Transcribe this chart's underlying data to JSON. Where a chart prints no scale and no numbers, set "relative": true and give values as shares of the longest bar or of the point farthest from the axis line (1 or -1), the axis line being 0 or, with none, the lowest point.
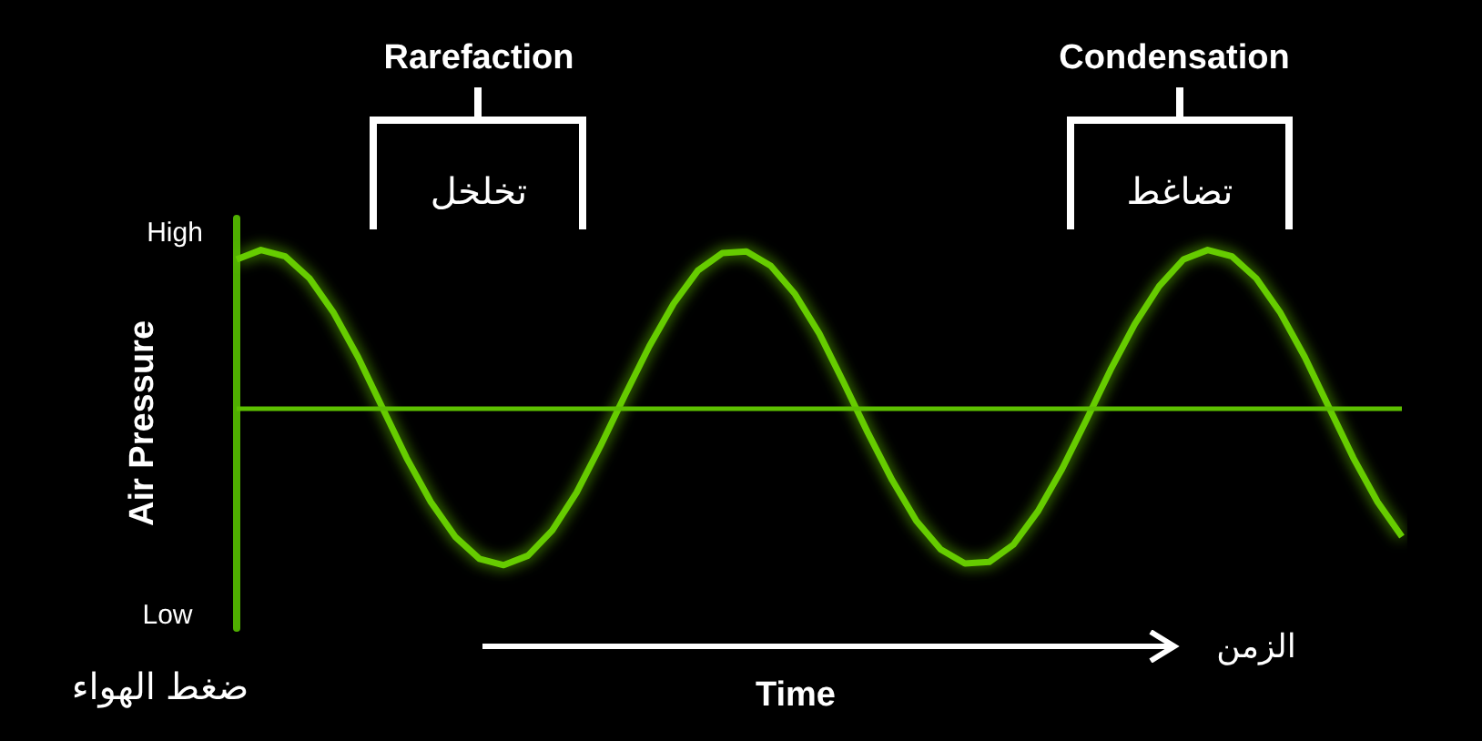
{
  "chart_data": {
    "type": "line",
    "relative": true,
    "xlabel": "Time",
    "ylabel": "Air Pressure",
    "color": "#66cc00",
    "marker": "none",
    "grid": false,
    "ref_lines": [
      {
        "axis": "y",
        "value": 0,
        "color": "#5cbf00"
      }
    ],
    "categories": [
      null,
      null,
      null,
      null,
      null,
      null,
      null,
      null,
      null,
      null,
      null,
      null,
      null,
      null,
      null,
      null,
      null,
      null,
      null,
      null,
      null,
      null,
      null,
      null,
      null,
      null,
      null,
      null,
      null,
      null,
      null,
      null,
      null,
      null,
      null,
      null,
      null,
      null,
      null,
      null,
      null,
      null,
      null,
      null,
      null,
      null,
      null,
      null,
      null
    ],
    "values": [
      0.94,
      1,
      0.96,
      0.82,
      0.6,
      0.32,
      0,
      -0.32,
      -0.6,
      -0.82,
      -0.96,
      -1,
      -0.94,
      -0.78,
      -0.54,
      -0.24,
      0.08,
      0.39,
      0.66,
      0.87,
      0.98,
      0.99,
      0.9,
      0.72,
      0.47,
      0.16,
      -0.16,
      -0.46,
      -0.72,
      -0.9,
      -0.99,
      -0.98,
      -0.87,
      -0.66,
      -0.39,
      -0.08,
      0.24,
      0.53,
      0.77,
      0.94,
      1,
      0.96,
      0.82,
      0.6,
      0.32,
      0,
      -0.32,
      -0.6,
      -0.82
    ],
    "annotations": [
      "Rarefaction",
      "تخلخل",
      "Condensation",
      "تضاغط",
      "High",
      "Low",
      "ضغط الهواء",
      "الزمن"
    ]
  }
}
